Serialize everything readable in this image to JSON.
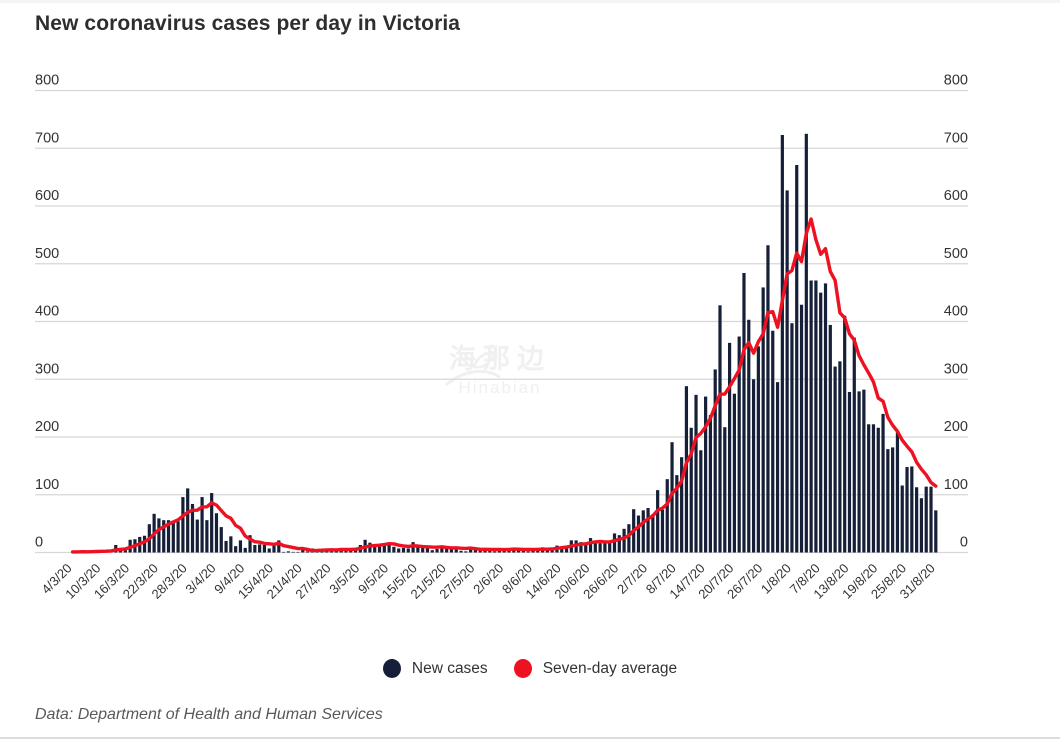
{
  "title": "New coronavirus cases per day in Victoria",
  "source": "Data: Department of Health and Human Services",
  "watermark": {
    "cn": "海那边",
    "en": "Hinabian"
  },
  "legend": {
    "new_cases": "New cases",
    "seven_day_average": "Seven-day average"
  },
  "colors": {
    "bar_navy": "#161f38",
    "line_red": "#ee1122",
    "grid": "#d7d7d7",
    "axis_text": "#333333"
  },
  "chart_data": {
    "type": "bar",
    "title": "New coronavirus cases per day in Victoria",
    "xlabel": "",
    "ylabel": "",
    "ylim": [
      0,
      800
    ],
    "y_ticks": [
      0,
      100,
      200,
      300,
      400,
      500,
      600,
      700,
      800
    ],
    "y_axis_sides": "both",
    "grid": "horizontal",
    "legend_position": "bottom",
    "x_tick_every_days": 6,
    "x_tick_labels": [
      "4/3/20",
      "10/3/20",
      "16/3/20",
      "22/3/20",
      "28/3/20",
      "3/4/20",
      "9/4/20",
      "15/4/20",
      "21/4/20",
      "27/4/20",
      "3/5/20",
      "9/5/20",
      "15/5/20",
      "21/5/20",
      "27/5/20",
      "2/6/20",
      "8/6/20",
      "14/6/20",
      "20/6/20",
      "26/6/20",
      "2/7/20",
      "8/7/20",
      "14/7/20",
      "20/7/20",
      "26/7/20",
      "1/8/20",
      "7/8/20",
      "13/8/20",
      "19/8/20",
      "25/8/20",
      "31/8/20"
    ],
    "series": [
      {
        "name": "New cases",
        "type": "bar",
        "color": "#161f38",
        "start_date": "4/3/20",
        "end_date": "31/8/20",
        "values": [
          1,
          1,
          2,
          1,
          2,
          3,
          4,
          3,
          5,
          13,
          8,
          8,
          22,
          23,
          27,
          29,
          49,
          67,
          59,
          56,
          56,
          55,
          54,
          96,
          111,
          84,
          57,
          96,
          56,
          103,
          68,
          44,
          20,
          28,
          11,
          21,
          8,
          30,
          13,
          14,
          13,
          7,
          14,
          21,
          1,
          2,
          1,
          1,
          9,
          2,
          7,
          3,
          5,
          3,
          4,
          7,
          7,
          7,
          5,
          7,
          13,
          22,
          17,
          13,
          11,
          14,
          17,
          10,
          7,
          8,
          7,
          18,
          12,
          9,
          8,
          4,
          6,
          12,
          11,
          6,
          10,
          3,
          2,
          9,
          5,
          4,
          6,
          8,
          2,
          4,
          6,
          7,
          8,
          5,
          4,
          2,
          4,
          8,
          9,
          8,
          8,
          12,
          9,
          12,
          21,
          21,
          18,
          13,
          25,
          19,
          16,
          17,
          20,
          33,
          30,
          41,
          49,
          75,
          64,
          73,
          77,
          66,
          108,
          74,
          127,
          191,
          134,
          165,
          288,
          216,
          273,
          177,
          270,
          238,
          317,
          428,
          217,
          363,
          275,
          374,
          484,
          403,
          300,
          357,
          459,
          532,
          384,
          295,
          723,
          627,
          397,
          671,
          429,
          725,
          471,
          471,
          450,
          466,
          394,
          322,
          331,
          410,
          278,
          372,
          279,
          282,
          222,
          222,
          216,
          240,
          179,
          182,
          208,
          116,
          148,
          149,
          113,
          94,
          114,
          114,
          73
        ]
      },
      {
        "name": "Seven-day average",
        "type": "line",
        "color": "#ee1122",
        "derived_from": "trailing 7-day mean of New cases"
      }
    ]
  }
}
